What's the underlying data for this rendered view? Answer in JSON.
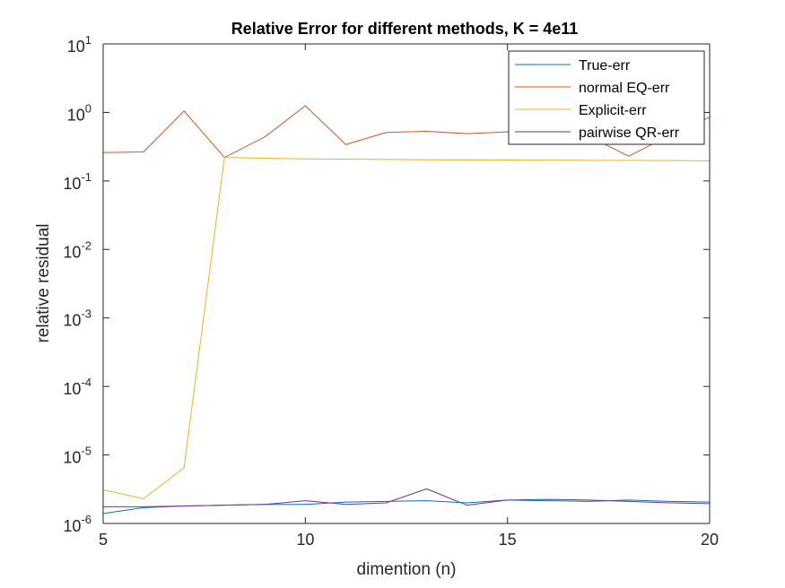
{
  "chart_data": {
    "type": "line",
    "title": "Relative Error for different methods, K = 4e11",
    "xlabel": "dimention (n)",
    "ylabel": "relative residual",
    "xlim": [
      5,
      20
    ],
    "ylim": [
      1e-06,
      10
    ],
    "yscale": "log",
    "grid": false,
    "legend_position": "top-right",
    "x_ticks": [
      {
        "value": 5,
        "label": "5"
      },
      {
        "value": 10,
        "label": "10"
      },
      {
        "value": 15,
        "label": "15"
      },
      {
        "value": 20,
        "label": "20"
      }
    ],
    "y_ticks": [
      {
        "value": 1e-06,
        "base": "10",
        "exp": "-6"
      },
      {
        "value": 1e-05,
        "base": "10",
        "exp": "-5"
      },
      {
        "value": 0.0001,
        "base": "10",
        "exp": "-4"
      },
      {
        "value": 0.001,
        "base": "10",
        "exp": "-3"
      },
      {
        "value": 0.01,
        "base": "10",
        "exp": "-2"
      },
      {
        "value": 0.1,
        "base": "10",
        "exp": "-1"
      },
      {
        "value": 1,
        "base": "10",
        "exp": "0"
      },
      {
        "value": 10,
        "base": "10",
        "exp": "1"
      }
    ],
    "x": [
      5,
      6,
      7,
      8,
      9,
      10,
      11,
      12,
      13,
      14,
      15,
      16,
      17,
      18,
      19,
      20
    ],
    "series": [
      {
        "name": "True-err",
        "color": "#0072BD",
        "values": [
          1.4e-06,
          1.7e-06,
          1.8e-06,
          1.85e-06,
          1.9e-06,
          1.9e-06,
          2.05e-06,
          2.1e-06,
          2.15e-06,
          2e-06,
          2.2e-06,
          2.15e-06,
          2.1e-06,
          2.2e-06,
          2.1e-06,
          2.05e-06
        ]
      },
      {
        "name": "normal EQ-err",
        "color": "#D95319",
        "values": [
          0.26,
          0.265,
          1.05,
          0.22,
          0.44,
          1.25,
          0.34,
          0.51,
          0.53,
          0.49,
          0.52,
          0.46,
          0.45,
          0.23,
          0.46,
          0.85
        ]
      },
      {
        "name": "Explicit-err",
        "color": "#EDB120",
        "values": [
          3.1e-06,
          2.3e-06,
          6.5e-06,
          0.22,
          0.215,
          0.21,
          0.208,
          0.206,
          0.204,
          0.203,
          0.202,
          0.201,
          0.2,
          0.199,
          0.198,
          0.197
        ]
      },
      {
        "name": "pairwise QR-err",
        "color": "#7E2F8E",
        "values": [
          1.75e-06,
          1.75e-06,
          1.8e-06,
          1.85e-06,
          1.9e-06,
          2.15e-06,
          1.9e-06,
          2e-06,
          3.2e-06,
          1.85e-06,
          2.2e-06,
          2.25e-06,
          2.2e-06,
          2.1e-06,
          2e-06,
          1.95e-06
        ]
      }
    ]
  }
}
